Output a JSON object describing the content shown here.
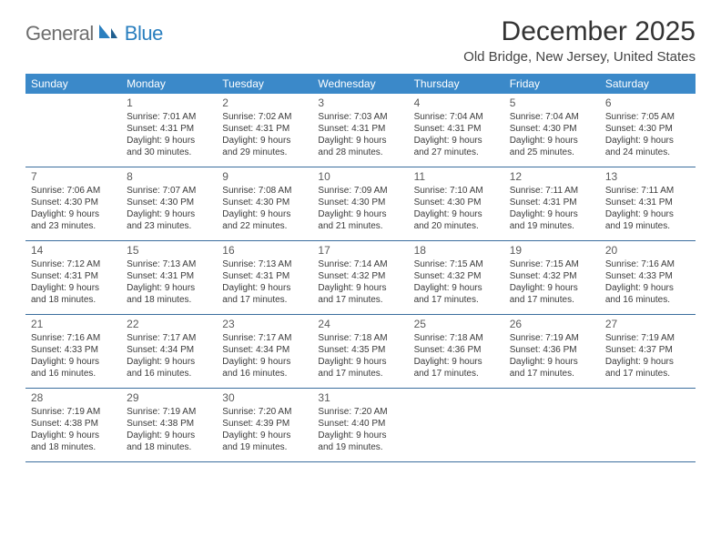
{
  "logo": {
    "text_gray": "General",
    "text_blue": "Blue"
  },
  "header": {
    "month_title": "December 2025",
    "location": "Old Bridge, New Jersey, United States"
  },
  "colors": {
    "header_bg": "#3b89c9",
    "rule": "#3b6e9e",
    "logo_gray": "#6e6e6e",
    "logo_blue": "#2a7fbf"
  },
  "day_headers": [
    "Sunday",
    "Monday",
    "Tuesday",
    "Wednesday",
    "Thursday",
    "Friday",
    "Saturday"
  ],
  "weeks": [
    [
      {
        "n": "",
        "sr": "",
        "ss": "",
        "dl": ""
      },
      {
        "n": "1",
        "sr": "Sunrise: 7:01 AM",
        "ss": "Sunset: 4:31 PM",
        "dl": "Daylight: 9 hours and 30 minutes."
      },
      {
        "n": "2",
        "sr": "Sunrise: 7:02 AM",
        "ss": "Sunset: 4:31 PM",
        "dl": "Daylight: 9 hours and 29 minutes."
      },
      {
        "n": "3",
        "sr": "Sunrise: 7:03 AM",
        "ss": "Sunset: 4:31 PM",
        "dl": "Daylight: 9 hours and 28 minutes."
      },
      {
        "n": "4",
        "sr": "Sunrise: 7:04 AM",
        "ss": "Sunset: 4:31 PM",
        "dl": "Daylight: 9 hours and 27 minutes."
      },
      {
        "n": "5",
        "sr": "Sunrise: 7:04 AM",
        "ss": "Sunset: 4:30 PM",
        "dl": "Daylight: 9 hours and 25 minutes."
      },
      {
        "n": "6",
        "sr": "Sunrise: 7:05 AM",
        "ss": "Sunset: 4:30 PM",
        "dl": "Daylight: 9 hours and 24 minutes."
      }
    ],
    [
      {
        "n": "7",
        "sr": "Sunrise: 7:06 AM",
        "ss": "Sunset: 4:30 PM",
        "dl": "Daylight: 9 hours and 23 minutes."
      },
      {
        "n": "8",
        "sr": "Sunrise: 7:07 AM",
        "ss": "Sunset: 4:30 PM",
        "dl": "Daylight: 9 hours and 23 minutes."
      },
      {
        "n": "9",
        "sr": "Sunrise: 7:08 AM",
        "ss": "Sunset: 4:30 PM",
        "dl": "Daylight: 9 hours and 22 minutes."
      },
      {
        "n": "10",
        "sr": "Sunrise: 7:09 AM",
        "ss": "Sunset: 4:30 PM",
        "dl": "Daylight: 9 hours and 21 minutes."
      },
      {
        "n": "11",
        "sr": "Sunrise: 7:10 AM",
        "ss": "Sunset: 4:30 PM",
        "dl": "Daylight: 9 hours and 20 minutes."
      },
      {
        "n": "12",
        "sr": "Sunrise: 7:11 AM",
        "ss": "Sunset: 4:31 PM",
        "dl": "Daylight: 9 hours and 19 minutes."
      },
      {
        "n": "13",
        "sr": "Sunrise: 7:11 AM",
        "ss": "Sunset: 4:31 PM",
        "dl": "Daylight: 9 hours and 19 minutes."
      }
    ],
    [
      {
        "n": "14",
        "sr": "Sunrise: 7:12 AM",
        "ss": "Sunset: 4:31 PM",
        "dl": "Daylight: 9 hours and 18 minutes."
      },
      {
        "n": "15",
        "sr": "Sunrise: 7:13 AM",
        "ss": "Sunset: 4:31 PM",
        "dl": "Daylight: 9 hours and 18 minutes."
      },
      {
        "n": "16",
        "sr": "Sunrise: 7:13 AM",
        "ss": "Sunset: 4:31 PM",
        "dl": "Daylight: 9 hours and 17 minutes."
      },
      {
        "n": "17",
        "sr": "Sunrise: 7:14 AM",
        "ss": "Sunset: 4:32 PM",
        "dl": "Daylight: 9 hours and 17 minutes."
      },
      {
        "n": "18",
        "sr": "Sunrise: 7:15 AM",
        "ss": "Sunset: 4:32 PM",
        "dl": "Daylight: 9 hours and 17 minutes."
      },
      {
        "n": "19",
        "sr": "Sunrise: 7:15 AM",
        "ss": "Sunset: 4:32 PM",
        "dl": "Daylight: 9 hours and 17 minutes."
      },
      {
        "n": "20",
        "sr": "Sunrise: 7:16 AM",
        "ss": "Sunset: 4:33 PM",
        "dl": "Daylight: 9 hours and 16 minutes."
      }
    ],
    [
      {
        "n": "21",
        "sr": "Sunrise: 7:16 AM",
        "ss": "Sunset: 4:33 PM",
        "dl": "Daylight: 9 hours and 16 minutes."
      },
      {
        "n": "22",
        "sr": "Sunrise: 7:17 AM",
        "ss": "Sunset: 4:34 PM",
        "dl": "Daylight: 9 hours and 16 minutes."
      },
      {
        "n": "23",
        "sr": "Sunrise: 7:17 AM",
        "ss": "Sunset: 4:34 PM",
        "dl": "Daylight: 9 hours and 16 minutes."
      },
      {
        "n": "24",
        "sr": "Sunrise: 7:18 AM",
        "ss": "Sunset: 4:35 PM",
        "dl": "Daylight: 9 hours and 17 minutes."
      },
      {
        "n": "25",
        "sr": "Sunrise: 7:18 AM",
        "ss": "Sunset: 4:36 PM",
        "dl": "Daylight: 9 hours and 17 minutes."
      },
      {
        "n": "26",
        "sr": "Sunrise: 7:19 AM",
        "ss": "Sunset: 4:36 PM",
        "dl": "Daylight: 9 hours and 17 minutes."
      },
      {
        "n": "27",
        "sr": "Sunrise: 7:19 AM",
        "ss": "Sunset: 4:37 PM",
        "dl": "Daylight: 9 hours and 17 minutes."
      }
    ],
    [
      {
        "n": "28",
        "sr": "Sunrise: 7:19 AM",
        "ss": "Sunset: 4:38 PM",
        "dl": "Daylight: 9 hours and 18 minutes."
      },
      {
        "n": "29",
        "sr": "Sunrise: 7:19 AM",
        "ss": "Sunset: 4:38 PM",
        "dl": "Daylight: 9 hours and 18 minutes."
      },
      {
        "n": "30",
        "sr": "Sunrise: 7:20 AM",
        "ss": "Sunset: 4:39 PM",
        "dl": "Daylight: 9 hours and 19 minutes."
      },
      {
        "n": "31",
        "sr": "Sunrise: 7:20 AM",
        "ss": "Sunset: 4:40 PM",
        "dl": "Daylight: 9 hours and 19 minutes."
      },
      {
        "n": "",
        "sr": "",
        "ss": "",
        "dl": ""
      },
      {
        "n": "",
        "sr": "",
        "ss": "",
        "dl": ""
      },
      {
        "n": "",
        "sr": "",
        "ss": "",
        "dl": ""
      }
    ]
  ]
}
